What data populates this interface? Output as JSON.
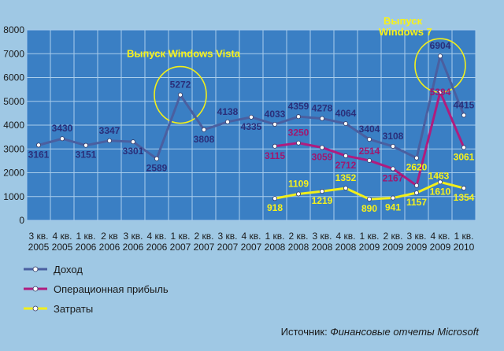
{
  "colors": {
    "background": "#9fc8e4",
    "plot": "#3a7fc4",
    "grid": "#a9cdeb",
    "income": "#4a5fa0",
    "profit": "#b01c7e",
    "costs": "#f2ef1a",
    "marker_fill": "#ffffff",
    "ellipse": "#f2ef1a",
    "label_dark": "#2a2f7a",
    "label_profit": "#a0176f",
    "label_yellow": "#f7f21a"
  },
  "chart_data": {
    "type": "line",
    "categories": [
      "3 кв. 2005",
      "4 кв. 2005",
      "1 кв. 2006",
      "2 кв 2006",
      "3 кв. 2006",
      "4 кв. 2006",
      "1 кв. 2007",
      "2 кв. 2007",
      "3 кв. 2007",
      "4 кв. 2007",
      "1 кв. 2008",
      "2 кв. 2008",
      "3 кв. 2008",
      "4 кв. 2008",
      "1 кв. 2009",
      "2 кв. 2009",
      "3 кв. 2009",
      "4 кв. 2009",
      "1 кв. 2010"
    ],
    "categories_line1": [
      "3 кв.",
      "4 кв.",
      "1 кв.",
      "2 кв",
      "3 кв.",
      "4 кв.",
      "1 кв.",
      "2 кв.",
      "3 кв.",
      "4 кв.",
      "1 кв.",
      "2 кв.",
      "3 кв.",
      "4 кв.",
      "1 кв.",
      "2 кв.",
      "3 кв.",
      "4 кв.",
      "1 кв."
    ],
    "categories_line2": [
      "2005",
      "2005",
      "2006",
      "2006",
      "2006",
      "2006",
      "2007",
      "2007",
      "2007",
      "2007",
      "2008",
      "2008",
      "2008",
      "2008",
      "2009",
      "2009",
      "2009",
      "2009",
      "2010"
    ],
    "ylim": [
      0,
      8000
    ],
    "yticks": [
      "0",
      "1000",
      "2000",
      "3000",
      "4000",
      "5000",
      "6000",
      "7000",
      "8000"
    ],
    "grid": true,
    "legend_position": "bottom-left",
    "series": [
      {
        "name": "Доход",
        "values": [
          3161,
          3430,
          3151,
          3347,
          3301,
          2589,
          5272,
          3808,
          4138,
          4335,
          4033,
          4359,
          4278,
          4064,
          3404,
          3108,
          2620,
          6904,
          4415
        ]
      },
      {
        "name": "Операционная прибыль",
        "values": [
          null,
          null,
          null,
          null,
          null,
          null,
          null,
          null,
          null,
          null,
          3115,
          3250,
          3059,
          2712,
          2514,
          2167,
          1463,
          5394,
          3061
        ]
      },
      {
        "name": "Затраты",
        "values": [
          null,
          null,
          null,
          null,
          null,
          null,
          null,
          null,
          null,
          null,
          918,
          1109,
          1219,
          1352,
          890,
          941,
          1157,
          1610,
          1354
        ]
      }
    ],
    "annotations": [
      {
        "text": "Выпуск Windows Vista",
        "category_index": 6
      },
      {
        "text": "Выпуск Windows 7",
        "category_index": 17
      }
    ]
  },
  "annotation_lines": [
    [
      "Выпуск Windows Vista"
    ],
    [
      "Выпуск",
      "Windows 7"
    ]
  ],
  "source": {
    "prefix": "Источник: ",
    "text": "Финансовые отчеты Microsoft"
  }
}
